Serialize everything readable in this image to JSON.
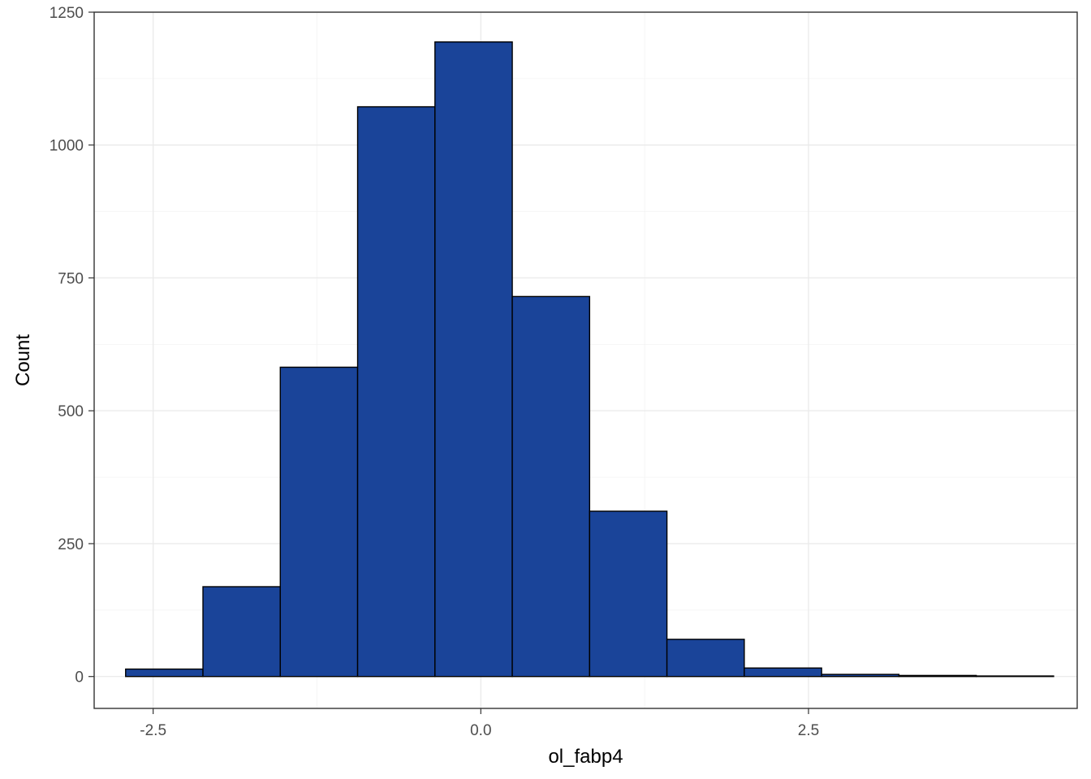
{
  "chart_data": {
    "type": "bar",
    "subtype": "histogram",
    "xlabel": "ol_fabp4",
    "ylabel": "Count",
    "xlim": [
      -2.95,
      4.55
    ],
    "ylim": [
      -60,
      1250
    ],
    "x_ticks": [
      -2.5,
      0.0,
      2.5
    ],
    "x_tick_labels": [
      "-2.5",
      "0.0",
      "2.5"
    ],
    "y_ticks": [
      0,
      250,
      500,
      750,
      1000,
      1250
    ],
    "y_tick_labels": [
      "0",
      "250",
      "500",
      "750",
      "1000",
      "1250"
    ],
    "bin_edges": [
      -2.71,
      -2.12,
      -1.53,
      -0.94,
      -0.35,
      0.24,
      0.83,
      1.42,
      2.01,
      2.6,
      3.19,
      3.78,
      4.37
    ],
    "values": [
      14,
      169,
      582,
      1072,
      1194,
      715,
      311,
      70,
      16,
      4,
      2,
      1
    ],
    "grid": true,
    "bar_fill": "#1a4499",
    "bar_stroke": "#000000",
    "theme": "bw"
  }
}
